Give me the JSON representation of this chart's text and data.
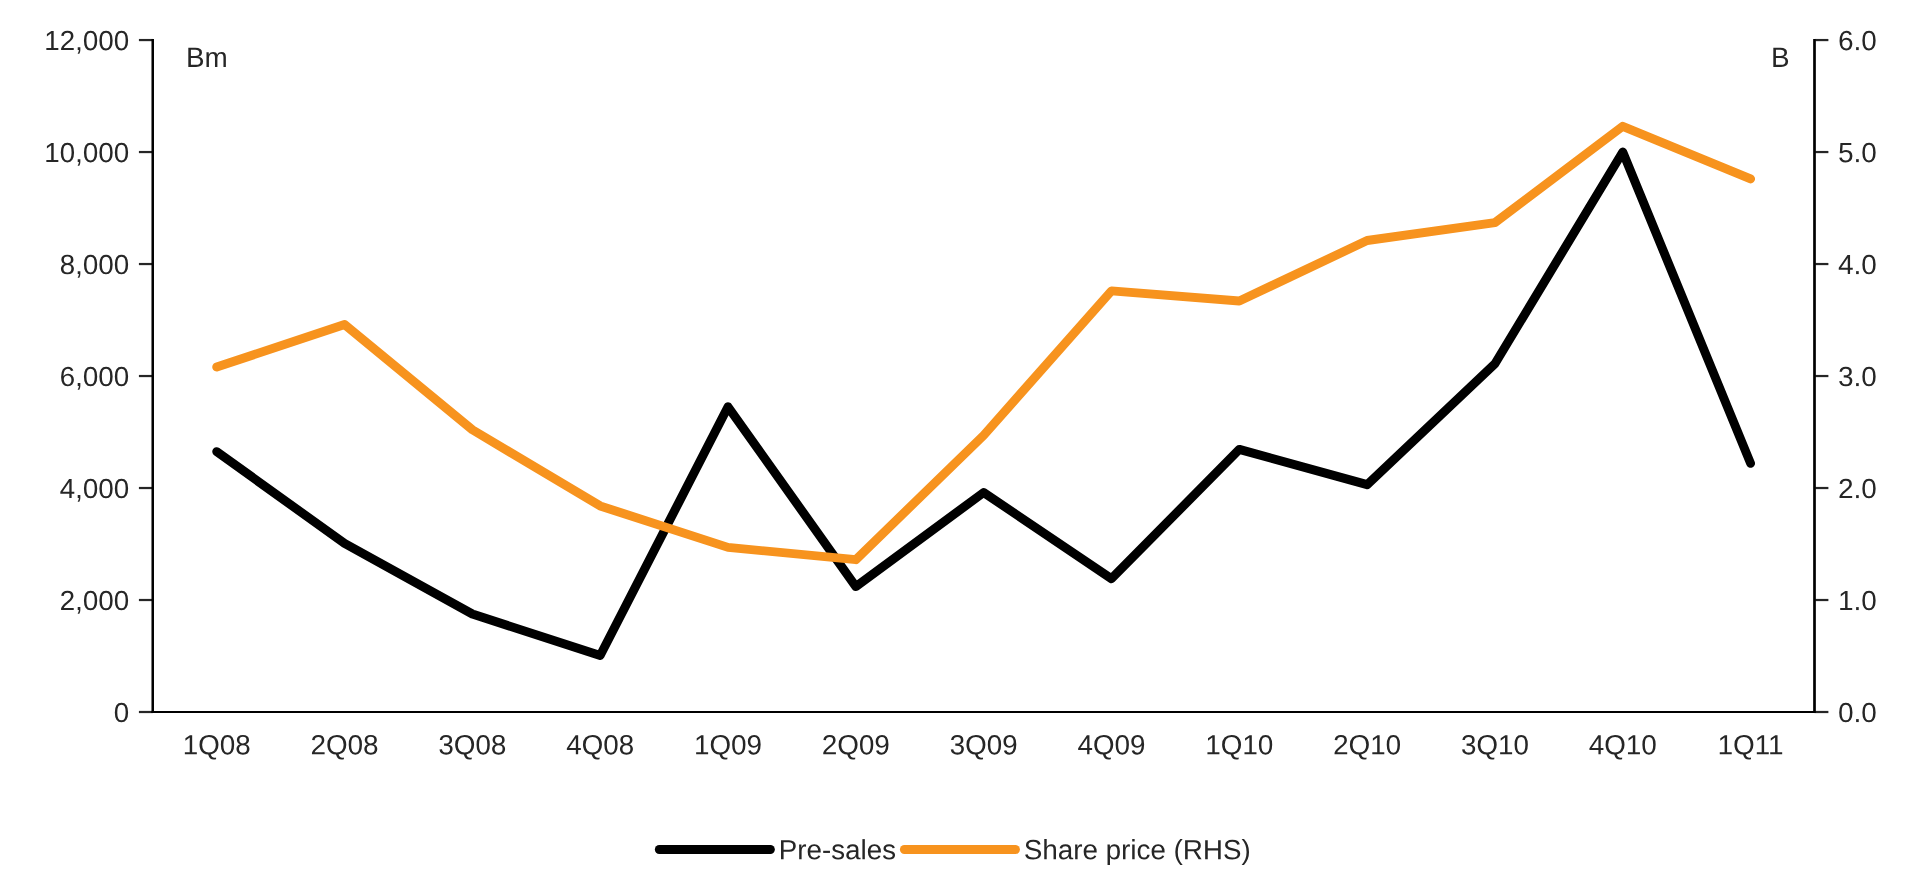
{
  "chart_data": {
    "type": "line",
    "categories": [
      "1Q08",
      "2Q08",
      "3Q08",
      "4Q08",
      "1Q09",
      "2Q09",
      "3Q09",
      "4Q09",
      "1Q10",
      "2Q10",
      "3Q10",
      "4Q10",
      "1Q11"
    ],
    "series": [
      {
        "name": "Pre-sales",
        "color": "#000000",
        "values": [
          4650,
          3010,
          1750,
          1010,
          5450,
          2240,
          3920,
          2380,
          4690,
          4060,
          6220,
          10000,
          4440
        ]
      },
      {
        "name": "Share price (RHS)",
        "color": "#f7931e",
        "axis": "y2",
        "values": [
          3.08,
          3.46,
          2.52,
          1.84,
          1.47,
          1.36,
          2.47,
          3.76,
          3.67,
          4.21,
          4.37,
          5.23,
          4.76
        ]
      }
    ],
    "ylabel": "Bm",
    "y2label": "B",
    "ylim": [
      0,
      12000
    ],
    "yticks": [
      {
        "value": 0,
        "label": "0"
      },
      {
        "value": 2000,
        "label": "2,000"
      },
      {
        "value": 4000,
        "label": "4,000"
      },
      {
        "value": 6000,
        "label": "6,000"
      },
      {
        "value": 8000,
        "label": "8,000"
      },
      {
        "value": 10000,
        "label": "10,000"
      },
      {
        "value": 12000,
        "label": "12,000"
      }
    ],
    "y2lim": [
      0,
      6
    ],
    "y2ticks": [
      {
        "value": 0,
        "label": "0.0"
      },
      {
        "value": 1,
        "label": "1.0"
      },
      {
        "value": 2,
        "label": "2.0"
      },
      {
        "value": 3,
        "label": "3.0"
      },
      {
        "value": 4,
        "label": "4.0"
      },
      {
        "value": 5,
        "label": "5.0"
      },
      {
        "value": 6,
        "label": "6.0"
      }
    ],
    "grid": false,
    "legend": "bottom",
    "marker": "none",
    "line_style": "solid"
  }
}
